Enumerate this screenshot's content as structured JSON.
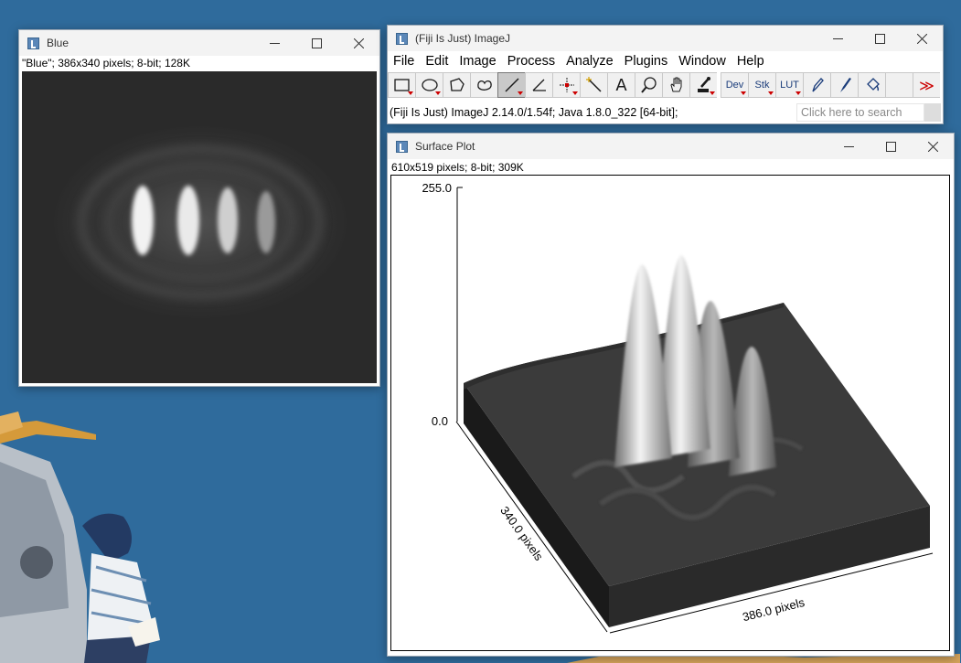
{
  "colors": {
    "desktop": "#2f6b9c",
    "titlebar": "#f3f3f3",
    "image_bg": "#2a2a2a"
  },
  "blue_window": {
    "title": "Blue",
    "info": "\"Blue\"; 386x340 pixels; 8-bit; 128K"
  },
  "imagej_window": {
    "title": "(Fiji Is Just) ImageJ",
    "menus": [
      "File",
      "Edit",
      "Image",
      "Process",
      "Analyze",
      "Plugins",
      "Window",
      "Help"
    ],
    "tools": {
      "rectangle": "rectangle-tool",
      "oval": "oval-tool",
      "polygon": "polygon-tool",
      "freehand": "freehand-tool",
      "line": "line-tool",
      "angle": "angle-tool",
      "point": "point-tool",
      "wand": "wand-tool",
      "text": "A",
      "zoom": "zoom-tool",
      "hand": "hand-tool",
      "picker": "color-picker-tool",
      "dev": "Dev",
      "stk": "Stk",
      "lut": "LUT",
      "pencil": "pencil-tool",
      "brush": "brush-tool",
      "fill": "flood-fill-tool",
      "more": "≫"
    },
    "status": "(Fiji Is Just) ImageJ 2.14.0/1.54f; Java 1.8.0_322 [64-bit];",
    "search_placeholder": "Click here to search"
  },
  "surface_window": {
    "title": "Surface Plot",
    "info": "610x519 pixels; 8-bit; 309K",
    "z_max": "255.0",
    "z_min": "0.0",
    "y_axis_label": "340.0 pixels",
    "x_axis_label": "386.0 pixels"
  }
}
